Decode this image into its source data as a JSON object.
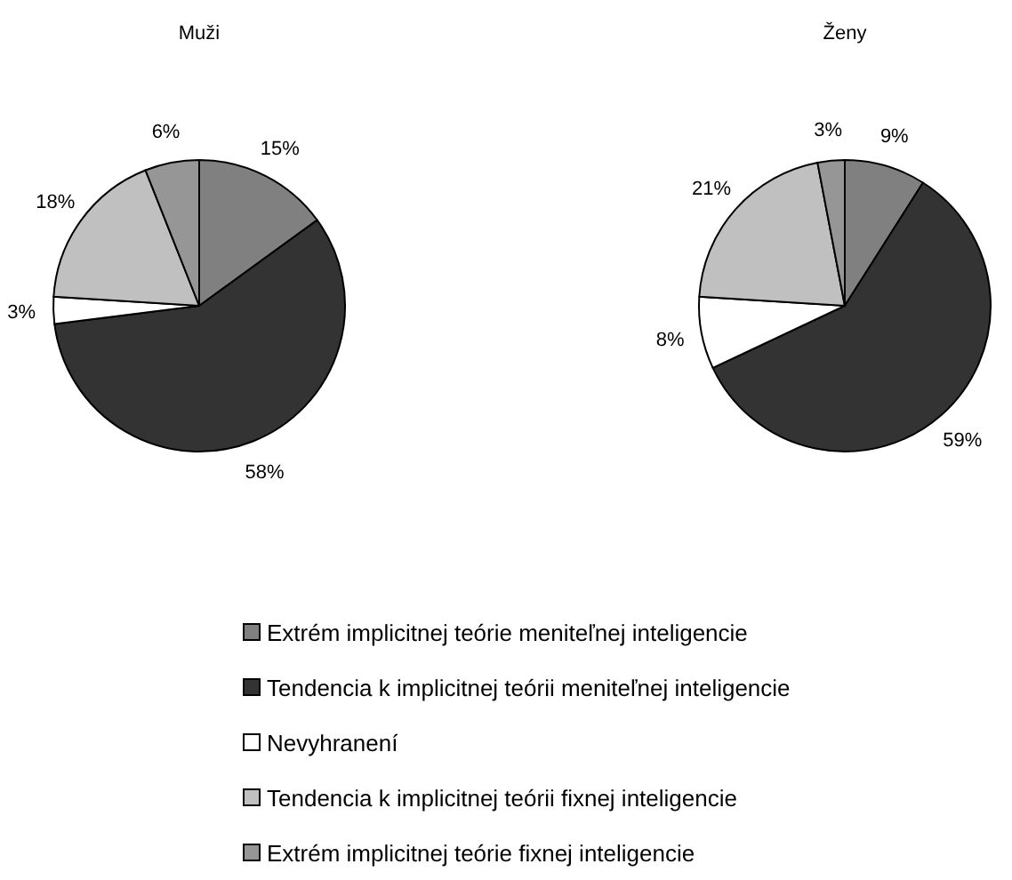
{
  "chart_data": [
    {
      "type": "pie",
      "title": "Muži",
      "categories": [
        "Extrém implicitnej teórie meniteľnej inteligencie",
        "Tendencia k implicitnej teórii meniteľnej inteligencie",
        "Nevyhranení",
        "Tendencia k implicitnej teórii fixnej inteligencie",
        "Extrém implicitnej teórie fixnej inteligencie"
      ],
      "values": [
        15,
        58,
        3,
        18,
        6
      ],
      "value_labels": [
        "15%",
        "58%",
        "3%",
        "18%",
        "6%"
      ],
      "colors": [
        "#808080",
        "#333333",
        "#ffffff",
        "#c0c0c0",
        "#969696"
      ],
      "legend": "bottom"
    },
    {
      "type": "pie",
      "title": "Ženy",
      "values": [
        9,
        59,
        8,
        21,
        3
      ],
      "value_labels": [
        "9%",
        "59%",
        "8%",
        "21%",
        "3%"
      ],
      "colors": [
        "#808080",
        "#333333",
        "#ffffff",
        "#c0c0c0",
        "#969696"
      ]
    }
  ]
}
